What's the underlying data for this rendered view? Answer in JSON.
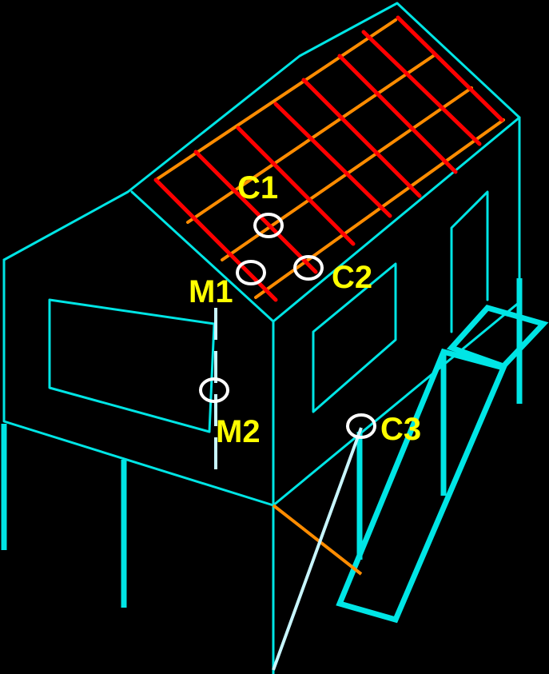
{
  "colors": {
    "background": "#000000",
    "frame": "#00e5e5",
    "rafter": "#ff0000",
    "batten": "#ff8c00",
    "brace": "#c8f6ff",
    "marker": "#ffffff",
    "label": "#ffff00"
  },
  "markers": {
    "c1": {
      "label": "C1"
    },
    "c2": {
      "label": "C2"
    },
    "c3": {
      "label": "C3"
    },
    "m1": {
      "label": "M1"
    },
    "m2": {
      "label": "M2"
    }
  }
}
